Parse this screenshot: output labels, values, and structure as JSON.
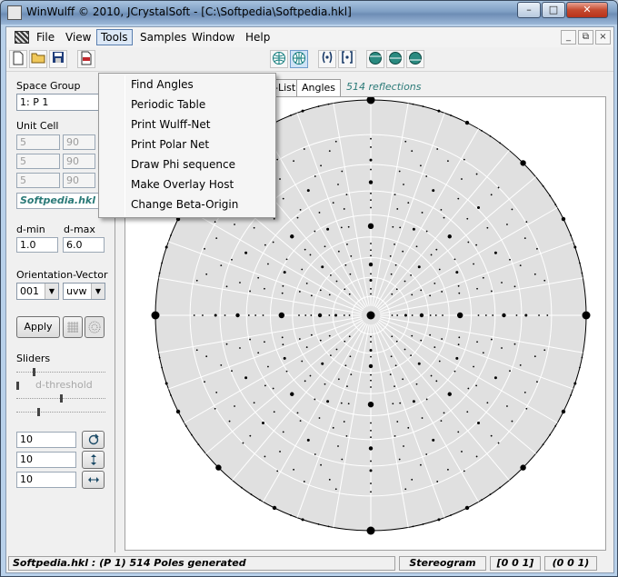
{
  "window": {
    "title": "WinWulff © 2010, JCrystalSoft - [C:\\Softpedia\\Softpedia.hkl]",
    "minimize": "–",
    "maximize": "□",
    "close": "✕",
    "mdi_minimize": "_",
    "mdi_restore": "⧉",
    "mdi_close": "×"
  },
  "menubar": {
    "items": [
      "File",
      "View",
      "Tools",
      "Samples",
      "Window",
      "Help"
    ]
  },
  "tools_menu": {
    "items": [
      "Find Angles",
      "Periodic Table",
      "Print Wulff-Net",
      "Print Polar Net",
      "Draw Phi sequence",
      "Make Overlay Host",
      "Change Beta-Origin"
    ]
  },
  "toolbar": {
    "icons": [
      "new-file-icon",
      "open-folder-icon",
      "save-icon",
      "pdf-icon",
      "net-icon",
      "net-selected-icon",
      "brackets-icon",
      "brackets-bold-icon",
      "tilt-up-icon",
      "tilt-mid-icon",
      "tilt-down-icon"
    ]
  },
  "left_panel": {
    "space_group_label": "Space Group",
    "space_group_value": "1: P 1",
    "unit_cell_label": "Unit Cell",
    "cell": [
      [
        "5",
        "90"
      ],
      [
        "5",
        "90"
      ],
      [
        "5",
        "90"
      ]
    ],
    "hkl_file": "Softpedia.hkl",
    "dmin_label": "d-min",
    "dmax_label": "d-max",
    "dmin_value": "1.0",
    "dmax_value": "6.0",
    "orientation_label": "Orientation-Vector",
    "orientation_value": "001",
    "orientation_mode": "uvw",
    "apply_label": "Apply",
    "sliders_label": "Sliders",
    "dthreshold_label": "d-threshold",
    "rotations": [
      "10",
      "10",
      "10"
    ]
  },
  "tabs": {
    "items": [
      "-List",
      "Angles"
    ],
    "reflections": "514 reflections"
  },
  "status": {
    "left": "Softpedia.hkl :  (P 1)  514 Poles generated",
    "projection": "Stereogram",
    "vector1": "[0  0  1]",
    "vector2": "(0  0  1)"
  },
  "colors": {
    "net_fill": "#e0e0e0",
    "net_lines": "#ffffff",
    "accent": "#2b7a78"
  }
}
